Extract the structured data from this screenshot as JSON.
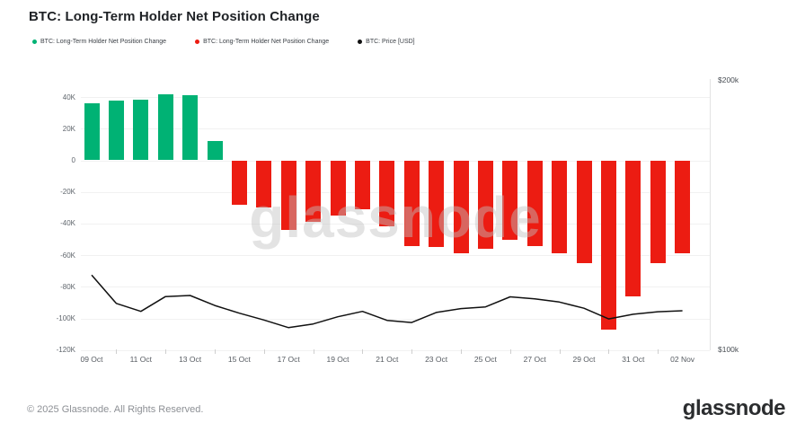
{
  "header": {
    "title": "BTC: Long-Term Holder Net Position Change"
  },
  "legend": [
    {
      "label": "BTC: Long-Term Holder Net Position Change",
      "color": "#00b274"
    },
    {
      "label": "BTC: Long-Term Holder Net Position Change",
      "color": "#ec1c12"
    },
    {
      "label": "BTC: Price [USD]",
      "color": "#111111"
    }
  ],
  "chart_data": {
    "type": "bar",
    "title": "BTC: Long-Term Holder Net Position Change",
    "watermark": "glassnode",
    "grid": true,
    "legend_position": "top-left",
    "x": [
      "09 Oct",
      "10 Oct",
      "11 Oct",
      "12 Oct",
      "13 Oct",
      "14 Oct",
      "15 Oct",
      "16 Oct",
      "17 Oct",
      "18 Oct",
      "19 Oct",
      "20 Oct",
      "21 Oct",
      "22 Oct",
      "23 Oct",
      "24 Oct",
      "25 Oct",
      "26 Oct",
      "27 Oct",
      "28 Oct",
      "29 Oct",
      "30 Oct",
      "31 Oct",
      "01 Nov",
      "02 Nov"
    ],
    "x_tick_labels": [
      "09 Oct",
      "11 Oct",
      "13 Oct",
      "15 Oct",
      "17 Oct",
      "19 Oct",
      "21 Oct",
      "23 Oct",
      "25 Oct",
      "27 Oct",
      "29 Oct",
      "31 Oct",
      "02 Nov"
    ],
    "series": [
      {
        "name": "BTC: Long-Term Holder Net Position Change",
        "type": "bar",
        "axis": "left",
        "unit": "BTC (thousands)",
        "positive_color": "#00b274",
        "negative_color": "#ec1c12",
        "values": [
          36,
          38,
          38.5,
          41.5,
          41,
          12,
          -28,
          -30,
          -44,
          -39,
          -35,
          -31,
          -42,
          -54,
          -55,
          -59,
          -56,
          -50,
          -54,
          -59,
          -65,
          -107,
          -86,
          -65,
          -59
        ]
      },
      {
        "name": "BTC: Price [USD]",
        "type": "line",
        "axis": "right",
        "unit": "USD (thousands)",
        "color": "#111111",
        "values": [
          120.8,
          112.3,
          110.0,
          114.3,
          114.6,
          111.7,
          109.5,
          107.6,
          105.5,
          106.5,
          108.5,
          110.0,
          107.5,
          106.9,
          109.7,
          110.8,
          111.3,
          114.2,
          113.6,
          112.7,
          110.9,
          107.9,
          109.2,
          109.9,
          110.2
        ]
      }
    ],
    "left_axis": {
      "tick_labels": [
        "40K",
        "20K",
        "0",
        "-20K",
        "-40K",
        "-60K",
        "-80K",
        "-100K",
        "-120K"
      ],
      "tick_values": [
        40,
        20,
        0,
        -20,
        -40,
        -60,
        -80,
        -100,
        -120
      ],
      "range": [
        -120,
        40
      ]
    },
    "right_axis": {
      "tick_labels": [
        "$200k",
        "$100k"
      ],
      "scale": "log",
      "range_usd": [
        100000,
        200000
      ]
    }
  },
  "footer": {
    "copyright": "© 2025 Glassnode. All Rights Reserved.",
    "logo": "glassnode"
  }
}
